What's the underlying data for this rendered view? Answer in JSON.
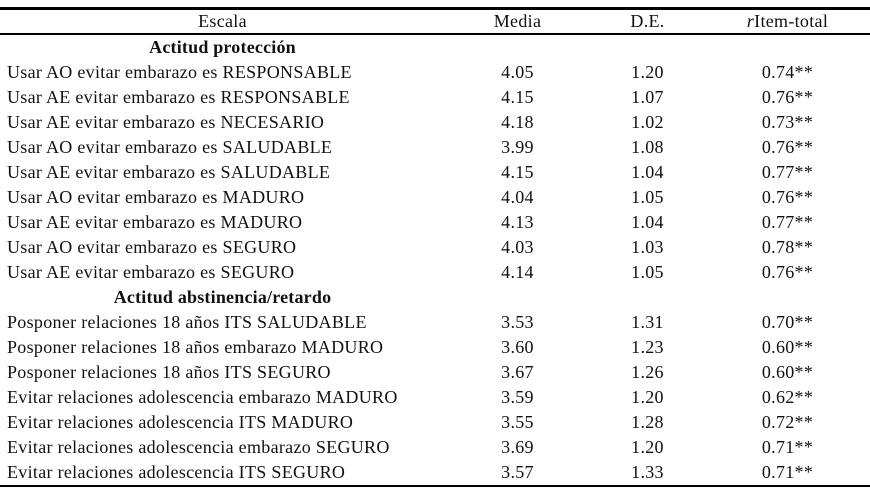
{
  "table": {
    "columns": {
      "escala": "Escala",
      "media": "Media",
      "de": "D.E.",
      "ritem_prefix": "r",
      "ritem_rest": "Item-total"
    },
    "sections": [
      {
        "title": "Actitud protección",
        "rows": [
          {
            "escala": "Usar AO evitar embarazo es RESPONSABLE",
            "media": "4.05",
            "de": "1.20",
            "ritem": "0.74**"
          },
          {
            "escala": "Usar AE evitar embarazo es RESPONSABLE",
            "media": "4.15",
            "de": "1.07",
            "ritem": "0.76**"
          },
          {
            "escala": "Usar AE evitar embarazo es NECESARIO",
            "media": "4.18",
            "de": "1.02",
            "ritem": "0.73**"
          },
          {
            "escala": "Usar AO evitar embarazo es SALUDABLE",
            "media": "3.99",
            "de": "1.08",
            "ritem": "0.76**"
          },
          {
            "escala": "Usar AE evitar embarazo es SALUDABLE",
            "media": "4.15",
            "de": "1.04",
            "ritem": "0.77**"
          },
          {
            "escala": "Usar AO evitar embarazo es MADURO",
            "media": "4.04",
            "de": "1.05",
            "ritem": "0.76**"
          },
          {
            "escala": "Usar AE evitar embarazo es MADURO",
            "media": "4.13",
            "de": "1.04",
            "ritem": "0.77**"
          },
          {
            "escala": "Usar AO evitar embarazo es SEGURO",
            "media": "4.03",
            "de": "1.03",
            "ritem": "0.78**"
          },
          {
            "escala": "Usar AE evitar embarazo es SEGURO",
            "media": "4.14",
            "de": "1.05",
            "ritem": "0.76**"
          }
        ]
      },
      {
        "title": "Actitud abstinencia/retardo",
        "rows": [
          {
            "escala": "Posponer relaciones 18 años ITS SALUDABLE",
            "media": "3.53",
            "de": "1.31",
            "ritem": "0.70**"
          },
          {
            "escala": "Posponer relaciones 18 años embarazo MADURO",
            "media": "3.60",
            "de": "1.23",
            "ritem": "0.60**"
          },
          {
            "escala": "Posponer relaciones 18 años ITS SEGURO",
            "media": "3.67",
            "de": "1.26",
            "ritem": "0.60**"
          },
          {
            "escala": "Evitar relaciones adolescencia embarazo MADURO",
            "media": "3.59",
            "de": "1.20",
            "ritem": "0.62**"
          },
          {
            "escala": "Evitar relaciones adolescencia ITS MADURO",
            "media": "3.55",
            "de": "1.28",
            "ritem": "0.72**"
          },
          {
            "escala": "Evitar relaciones adolescencia embarazo SEGURO",
            "media": "3.69",
            "de": "1.20",
            "ritem": "0.71**"
          },
          {
            "escala": "Evitar relaciones adolescencia ITS SEGURO",
            "media": "3.57",
            "de": "1.33",
            "ritem": "0.71**"
          }
        ]
      }
    ]
  }
}
